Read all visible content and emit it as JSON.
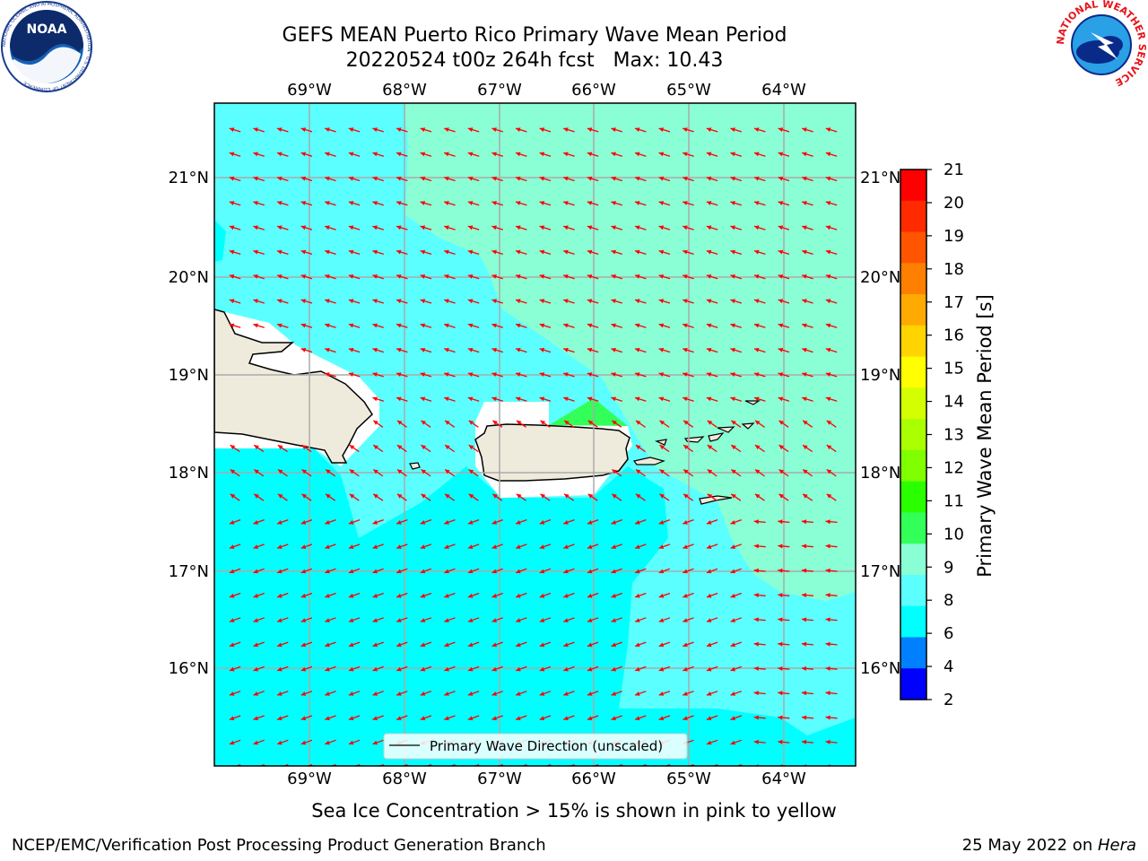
{
  "header": {
    "title_line1": "GEFS MEAN Puerto Rico Primary Wave Mean Period",
    "title_line2": "20220524 t00z 264h fcst   Max: 10.43"
  },
  "logos": {
    "noaa_text": "NOAA",
    "noaa_ring": "NATIONAL OCEANIC AND ATMOSPHERIC ADMINISTRATION · U.S. DEPARTMENT OF COMMERCE",
    "nws_ring": "NATIONAL WEATHER SERVICE"
  },
  "map": {
    "lon_labels": [
      "69°W",
      "68°W",
      "67°W",
      "66°W",
      "65°W",
      "64°W"
    ],
    "lat_labels": [
      "21°N",
      "20°N",
      "19°N",
      "18°N",
      "17°N",
      "16°N"
    ],
    "legend_label": "Primary Wave Direction (unscaled)",
    "arrow_color": "#ff0000"
  },
  "colorbar": {
    "label": "Primary Wave Mean Period [s]",
    "ticks": [
      "21",
      "20",
      "19",
      "18",
      "17",
      "16",
      "15",
      "14",
      "13",
      "12",
      "11",
      "10",
      "9",
      "8",
      "6",
      "4",
      "2"
    ],
    "colors_top_to_bottom": [
      "#ff0000",
      "#ff2a00",
      "#ff5500",
      "#ff7f00",
      "#ffaa00",
      "#ffd400",
      "#ffff00",
      "#d4ff00",
      "#aaff00",
      "#7fff00",
      "#2aff00",
      "#32ff58",
      "#8affd5",
      "#5cffff",
      "#00ffff",
      "#0080ff",
      "#0000ff"
    ]
  },
  "sea_ice_note": "Sea Ice Concentration > 15% is shown in pink to yellow",
  "footer": {
    "left": "NCEP/EMC/Verification Post Processing Product Generation Branch",
    "date": "25 May 2022 on ",
    "machine": "Hera"
  }
}
